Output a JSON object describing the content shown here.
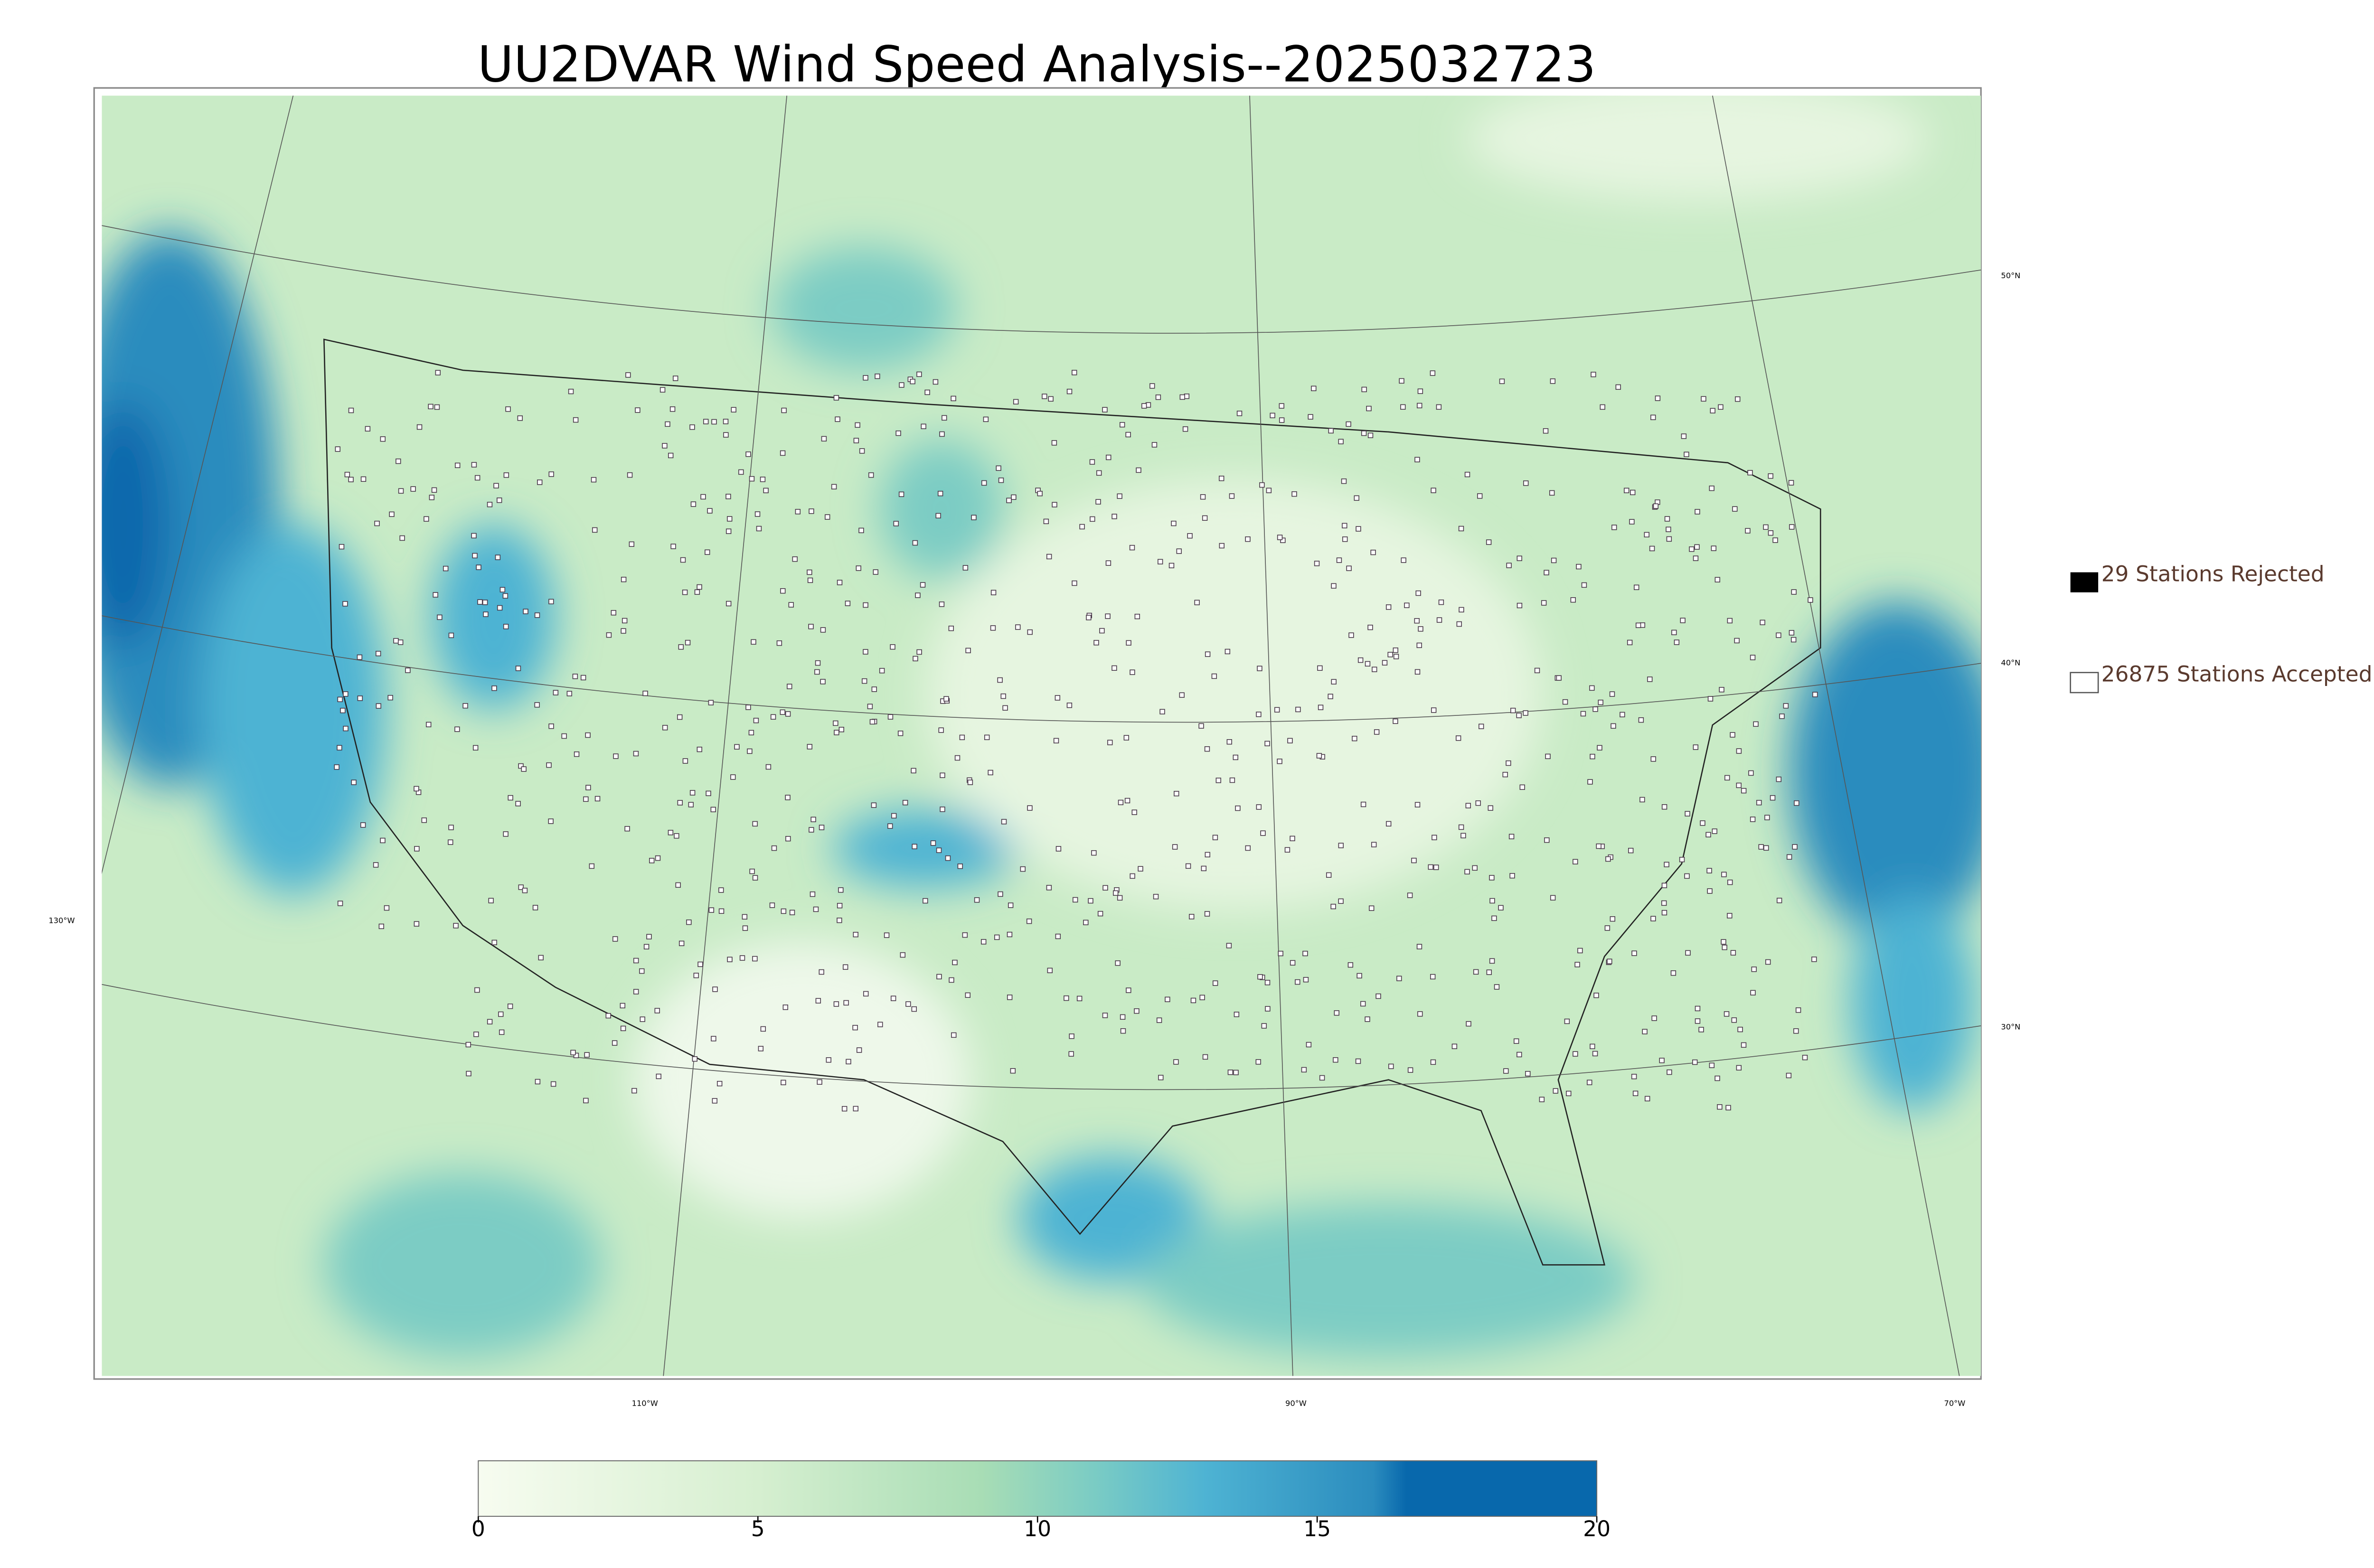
{
  "title": "UU2DVAR Wind Speed Analysis--2025032723",
  "legend": [
    {
      "label": "29 Stations Rejected"
    },
    {
      "label": "26875 Stations Accepted"
    }
  ],
  "latitude_labels": [
    "50°N",
    "40°N",
    "30°N"
  ],
  "longitude_labels": [
    "130°W",
    "110°W",
    "90°W",
    "70°W"
  ],
  "colorbar": {
    "lim": [
      0,
      20
    ],
    "ticks": [
      0,
      5,
      10,
      15,
      20
    ]
  }
}
